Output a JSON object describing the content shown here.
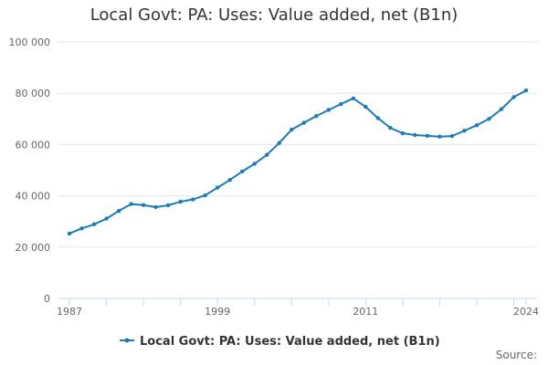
{
  "title": "Local Govt: PA: Uses: Value added, net (B1n)",
  "source_label": "Source:",
  "chart_data": {
    "type": "line",
    "title": "Local Govt: PA: Uses: Value added, net (B1n)",
    "xlabel": "",
    "ylabel": "",
    "x_tick_labels": [
      "1987",
      "1999",
      "2011",
      "2024"
    ],
    "x_ticks": [
      1987,
      1999,
      2011,
      2024
    ],
    "xlim": [
      1987,
      2024
    ],
    "y_tick_labels": [
      "0",
      "20 000",
      "40 000",
      "60 000",
      "80 000",
      "100 000"
    ],
    "y_ticks": [
      0,
      20000,
      40000,
      60000,
      80000,
      100000
    ],
    "ylim": [
      0,
      100000
    ],
    "grid": "horizontal",
    "legend_position": "bottom",
    "color": "#1f7bb5",
    "series": [
      {
        "name": "Local Govt: PA: Uses: Value added, net (B1n)",
        "x": [
          1987,
          1988,
          1989,
          1990,
          1991,
          1992,
          1993,
          1994,
          1995,
          1996,
          1997,
          1998,
          1999,
          2000,
          2001,
          2002,
          2003,
          2004,
          2005,
          2006,
          2007,
          2008,
          2009,
          2010,
          2011,
          2012,
          2013,
          2014,
          2015,
          2016,
          2017,
          2018,
          2019,
          2020,
          2021,
          2022,
          2023,
          2024
        ],
        "values": [
          25300,
          27300,
          28900,
          31100,
          34100,
          36800,
          36400,
          35600,
          36300,
          37700,
          38600,
          40200,
          43200,
          46200,
          49500,
          52500,
          56000,
          60600,
          65800,
          68500,
          71100,
          73500,
          75800,
          78000,
          74700,
          70300,
          66500,
          64400,
          63700,
          63400,
          63100,
          63300,
          65400,
          67500,
          70000,
          73800,
          78500,
          81100
        ]
      }
    ]
  }
}
